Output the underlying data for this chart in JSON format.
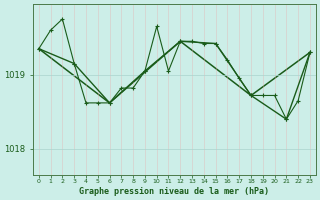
{
  "title": "Graphe pression niveau de la mer (hPa)",
  "background_color": "#cceee8",
  "grid_color": "#aad4ce",
  "line_color": "#1a5c1a",
  "xlim": [
    -0.5,
    23.5
  ],
  "ylim": [
    1017.65,
    1019.95
  ],
  "yticks": [
    1018,
    1019
  ],
  "xticks": [
    0,
    1,
    2,
    3,
    4,
    5,
    6,
    7,
    8,
    9,
    10,
    11,
    12,
    13,
    14,
    15,
    16,
    17,
    18,
    19,
    20,
    21,
    22,
    23
  ],
  "series1_x": [
    0,
    1,
    2,
    3,
    4,
    5,
    6,
    7,
    8,
    9,
    10,
    11,
    12,
    13,
    14,
    15,
    16,
    17,
    18,
    19,
    20,
    21,
    22,
    23
  ],
  "series1_y": [
    1019.35,
    1019.6,
    1019.75,
    1019.15,
    1018.62,
    1018.62,
    1018.62,
    1018.82,
    1018.82,
    1019.05,
    1019.65,
    1019.05,
    1019.45,
    1019.45,
    1019.42,
    1019.42,
    1019.2,
    1018.95,
    1018.72,
    1018.72,
    1018.72,
    1018.4,
    1018.65,
    1019.3
  ],
  "series2_x": [
    0,
    3,
    6,
    9,
    12,
    15,
    18,
    21,
    23
  ],
  "series2_y": [
    1019.35,
    1019.15,
    1018.62,
    1019.05,
    1019.45,
    1019.42,
    1018.72,
    1018.4,
    1019.3
  ],
  "series3_x": [
    0,
    6,
    12,
    18,
    23
  ],
  "series3_y": [
    1019.35,
    1018.62,
    1019.45,
    1018.72,
    1019.3
  ]
}
